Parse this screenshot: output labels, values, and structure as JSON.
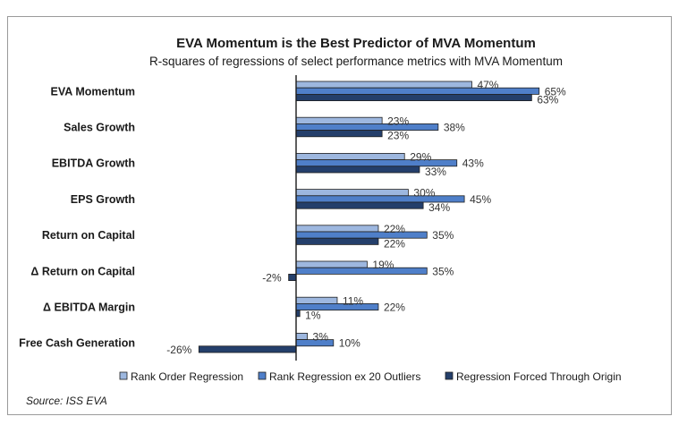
{
  "chart_data": {
    "type": "bar",
    "orientation": "horizontal",
    "title": "EVA Momentum is the Best Predictor of MVA Momentum",
    "subtitle": "R-squares of regressions of select performance metrics with MVA Momentum",
    "categories": [
      "EVA Momentum",
      "Sales Growth",
      "EBITDA Growth",
      "EPS Growth",
      "Return on Capital",
      "Δ Return on Capital",
      "Δ EBITDA Margin",
      "Free Cash Generation"
    ],
    "series": [
      {
        "name": "Rank Order Regression",
        "color": "#9db7df",
        "values": [
          47,
          23,
          29,
          30,
          22,
          19,
          11,
          3
        ],
        "labels": [
          "47%",
          "23%",
          "29%",
          "30%",
          "22%",
          "19%",
          "11%",
          "3%"
        ]
      },
      {
        "name": "Rank Regression ex 20 Outliers",
        "color": "#4f7fc9",
        "values": [
          65,
          38,
          43,
          45,
          35,
          35,
          22,
          10
        ],
        "labels": [
          "65%",
          "38%",
          "43%",
          "45%",
          "35%",
          "35%",
          "22%",
          "10%"
        ]
      },
      {
        "name": "Regression Forced Through Origin",
        "color": "#243f6b",
        "values": [
          63,
          23,
          33,
          34,
          22,
          -2,
          1,
          -26
        ],
        "labels": [
          "63%",
          "23%",
          "33%",
          "34%",
          "22%",
          "-2%",
          "1%",
          "-26%"
        ]
      }
    ],
    "xlim": [
      -26,
      65
    ],
    "legend_position": "bottom",
    "source": "Source: ISS EVA"
  }
}
